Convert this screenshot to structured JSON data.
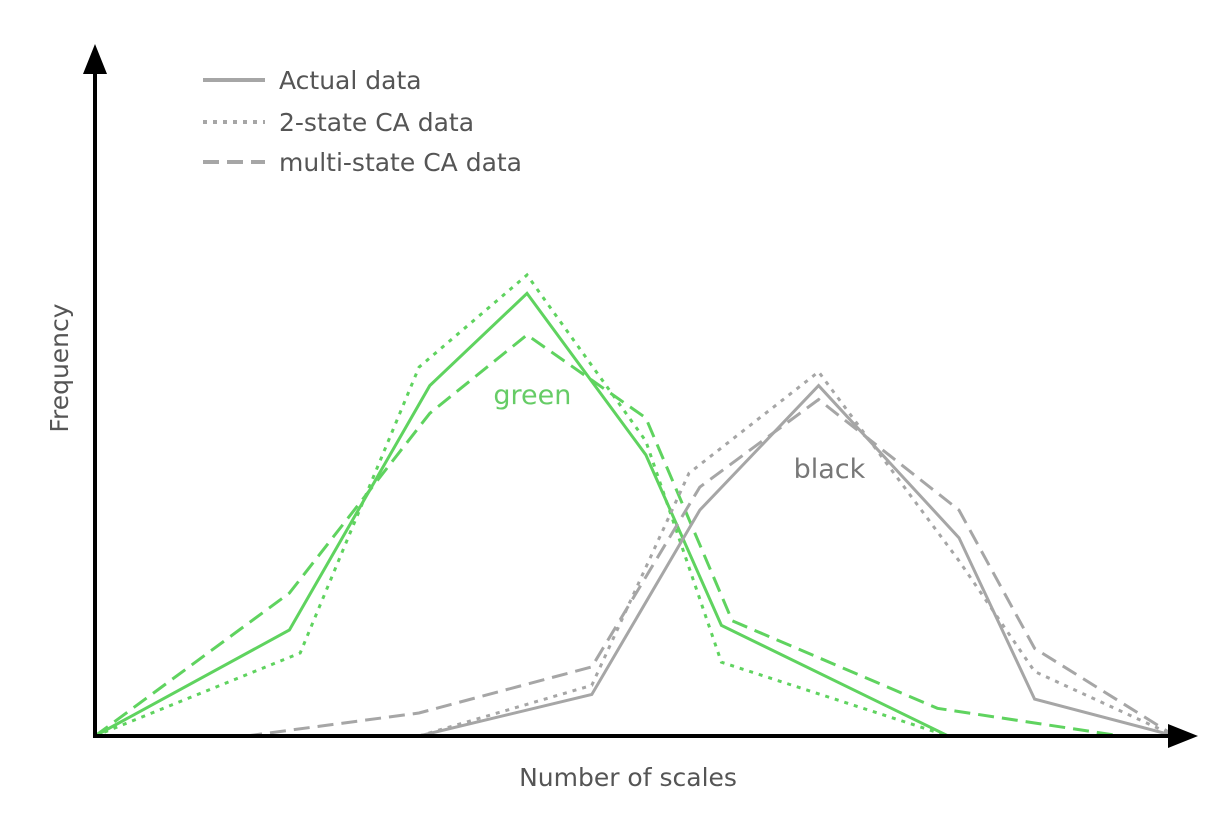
{
  "chart_data": {
    "type": "line",
    "xlabel": "Number of scales",
    "ylabel": "Frequency",
    "legend": {
      "placement": "top-left",
      "entries": [
        {
          "label": "Actual data",
          "style": "solid"
        },
        {
          "label": "2-state CA data",
          "style": "dotted"
        },
        {
          "label": "multi-state CA data",
          "style": "dashed"
        }
      ]
    },
    "series_labels": [
      {
        "text": "green",
        "x": 40.5,
        "y": 72,
        "color": "#66cc66"
      },
      {
        "text": "black",
        "x": 68,
        "y": 56,
        "color": "#777777"
      }
    ],
    "colors": {
      "green": "#5fd35f",
      "black": "#a6a6a6",
      "axis": "#000000"
    },
    "xlim": [
      0,
      100
    ],
    "ylim": [
      0,
      100
    ],
    "series": [
      {
        "group": "green",
        "style": "solid",
        "x": [
          0,
          18,
          31,
          40,
          51,
          58,
          79
        ],
        "y": [
          0,
          23,
          76,
          96,
          61,
          24,
          0
        ]
      },
      {
        "group": "green",
        "style": "dotted",
        "x": [
          0,
          19,
          30,
          40,
          51,
          58,
          79
        ],
        "y": [
          0,
          18,
          80,
          100,
          64,
          16,
          0
        ]
      },
      {
        "group": "green",
        "style": "dashed",
        "x": [
          0,
          18,
          31,
          40,
          51,
          59,
          78,
          95
        ],
        "y": [
          0,
          31,
          70,
          87,
          69,
          25,
          6,
          0
        ]
      },
      {
        "group": "black",
        "style": "solid",
        "x": [
          30,
          46,
          56,
          67,
          80,
          87,
          100
        ],
        "y": [
          0,
          9,
          49,
          76,
          43,
          8,
          0
        ]
      },
      {
        "group": "black",
        "style": "dotted",
        "x": [
          30,
          46,
          55,
          67,
          80,
          87,
          100
        ],
        "y": [
          0,
          11,
          57,
          79,
          38,
          14,
          0
        ]
      },
      {
        "group": "black",
        "style": "dashed",
        "x": [
          14,
          30,
          46,
          56,
          67,
          80,
          87,
          100
        ],
        "y": [
          0,
          5,
          15,
          54,
          73,
          49,
          19,
          0
        ]
      }
    ]
  }
}
